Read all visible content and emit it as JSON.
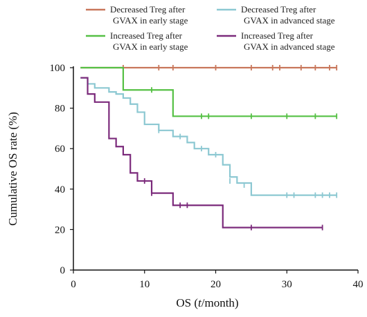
{
  "chart_data": {
    "type": "line",
    "subtype": "kaplan-meier step",
    "xlabel_parts": [
      "OS (",
      "t",
      "/month)"
    ],
    "ylabel": "Cumulative OS rate (%)",
    "xlim": [
      0,
      40
    ],
    "ylim": [
      0,
      100
    ],
    "xticks": [
      "0",
      "10",
      "20",
      "30",
      "40"
    ],
    "yticks": [
      "0",
      "20",
      "40",
      "60",
      "80",
      "100"
    ],
    "grid": false,
    "legend_position": "top",
    "series": [
      {
        "name_lines": [
          "Decreased Treg after",
          "GVAX in early stage"
        ],
        "color": "#c8765a",
        "points": [
          [
            1,
            100
          ],
          [
            37,
            100
          ]
        ],
        "censored": [
          [
            7,
            100
          ],
          [
            12,
            100
          ],
          [
            14,
            100
          ],
          [
            20,
            100
          ],
          [
            25,
            100
          ],
          [
            28,
            100
          ],
          [
            29,
            100
          ],
          [
            32,
            100
          ],
          [
            34,
            100
          ],
          [
            36,
            100
          ],
          [
            37,
            100
          ]
        ]
      },
      {
        "name_lines": [
          "Decreased Treg after",
          "GVAX in advanced stage"
        ],
        "color": "#8cc8d2",
        "points": [
          [
            1,
            95
          ],
          [
            2,
            92
          ],
          [
            3,
            90
          ],
          [
            5,
            88
          ],
          [
            6,
            87
          ],
          [
            7,
            85
          ],
          [
            8,
            82
          ],
          [
            9,
            78
          ],
          [
            10,
            72
          ],
          [
            12,
            69
          ],
          [
            14,
            66
          ],
          [
            16,
            63
          ],
          [
            17,
            60
          ],
          [
            19,
            57
          ],
          [
            21,
            52
          ],
          [
            22,
            46
          ],
          [
            23,
            43
          ],
          [
            25,
            37
          ],
          [
            37,
            37
          ]
        ],
        "censored": [
          [
            12,
            69
          ],
          [
            15,
            66
          ],
          [
            18,
            60
          ],
          [
            20,
            57
          ],
          [
            22,
            44
          ],
          [
            24,
            42
          ],
          [
            30,
            37
          ],
          [
            31,
            37
          ],
          [
            34,
            37
          ],
          [
            35,
            37
          ],
          [
            36,
            37
          ],
          [
            37,
            37
          ]
        ]
      },
      {
        "name_lines": [
          "Increased Treg after",
          "GVAX in early stage"
        ],
        "color": "#55c044",
        "points": [
          [
            1,
            100
          ],
          [
            7,
            100
          ],
          [
            7,
            89
          ],
          [
            14,
            89
          ],
          [
            14,
            76
          ],
          [
            37,
            76
          ]
        ],
        "censored": [
          [
            11,
            89
          ],
          [
            18,
            76
          ],
          [
            19,
            76
          ],
          [
            25,
            76
          ],
          [
            30,
            76
          ],
          [
            34,
            76
          ],
          [
            37,
            76
          ]
        ]
      },
      {
        "name_lines": [
          "Increased Treg after",
          "GVAX in advanced stage"
        ],
        "color": "#7b2a7b",
        "points": [
          [
            1,
            95
          ],
          [
            2,
            87
          ],
          [
            3,
            83
          ],
          [
            5,
            65
          ],
          [
            6,
            61
          ],
          [
            7,
            57
          ],
          [
            8,
            48
          ],
          [
            9,
            44
          ],
          [
            11,
            38
          ],
          [
            14,
            32
          ],
          [
            21,
            21
          ],
          [
            35,
            21
          ]
        ],
        "censored": [
          [
            10,
            44
          ],
          [
            11,
            38
          ],
          [
            15,
            32
          ],
          [
            16,
            32
          ],
          [
            25,
            21
          ],
          [
            35,
            21
          ]
        ]
      }
    ]
  }
}
